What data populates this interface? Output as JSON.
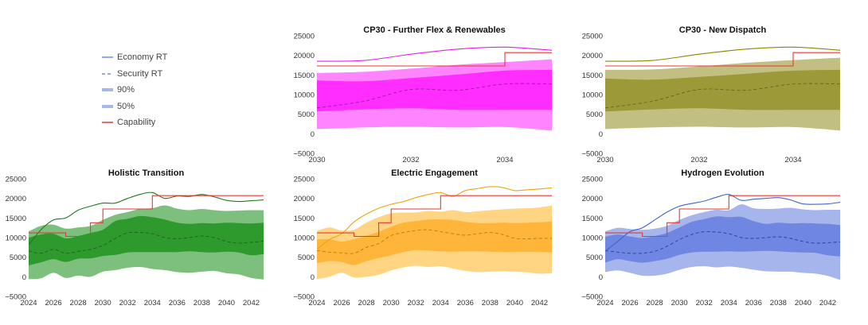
{
  "legend": {
    "items": [
      {
        "label": "Economy RT",
        "style": "solid",
        "weight": 1.5,
        "color": "#6f8fd9"
      },
      {
        "label": "Security RT",
        "style": "dashed",
        "weight": 1.5,
        "color": "#6f8fd9"
      },
      {
        "label": "90%",
        "style": "band",
        "weight": 4,
        "color": "#a6b7ea"
      },
      {
        "label": "50%",
        "style": "band",
        "weight": 4,
        "color": "#a6b7ea"
      },
      {
        "label": "Capability",
        "style": "solid",
        "weight": 1.5,
        "color": "#e53935"
      }
    ]
  },
  "chart_data": [
    {
      "title": "CP30 - Further Flex & Renewables",
      "type": "area",
      "xlim": [
        2030,
        2035
      ],
      "ylim": [
        -5000,
        25000
      ],
      "xticks": [
        2030,
        2032,
        2034
      ],
      "yticks": [
        -5000,
        0,
        5000,
        10000,
        15000,
        20000,
        25000
      ],
      "colors": {
        "outer": "#ff85ff",
        "inner": "#ff2dff",
        "economy": "#e61ee6",
        "median": "#9a1a9a",
        "capability": "#e53935"
      },
      "x": [
        2030,
        2031,
        2032,
        2033,
        2034,
        2035
      ],
      "series": [
        {
          "name": "Economy RT",
          "values": [
            18500,
            18700,
            20300,
            21600,
            22100,
            21300
          ]
        },
        {
          "name": "Security RT",
          "values": [
            6600,
            8300,
            11300,
            11100,
            12700,
            12700
          ]
        },
        {
          "name": "90% lower",
          "values": [
            1200,
            1600,
            1800,
            1600,
            1700,
            800
          ]
        },
        {
          "name": "90% upper",
          "values": [
            15500,
            15800,
            16600,
            17600,
            18300,
            19000
          ]
        },
        {
          "name": "50% lower",
          "values": [
            5700,
            6200,
            6500,
            6100,
            6100,
            6100
          ]
        },
        {
          "name": "50% upper",
          "values": [
            13600,
            13400,
            14200,
            15100,
            16100,
            16300
          ]
        }
      ],
      "capability": {
        "x": [
          2030,
          2034,
          2034,
          2035
        ],
        "y": [
          17300,
          17300,
          20700,
          20700
        ]
      }
    },
    {
      "title": "CP30 - New Dispatch",
      "type": "area",
      "xlim": [
        2030,
        2035
      ],
      "ylim": [
        -5000,
        25000
      ],
      "xticks": [
        2030,
        2032,
        2034
      ],
      "yticks": [
        -5000,
        0,
        5000,
        10000,
        15000,
        20000,
        25000
      ],
      "colors": {
        "outer": "#c2bf82",
        "inner": "#9c9a38",
        "economy": "#8a8600",
        "median": "#666418",
        "capability": "#e53935"
      },
      "x": [
        2030,
        2031,
        2032,
        2033,
        2034,
        2035
      ],
      "series": [
        {
          "name": "Economy RT",
          "values": [
            18500,
            18700,
            20300,
            21600,
            22100,
            21300
          ]
        },
        {
          "name": "Security RT",
          "values": [
            6600,
            8300,
            11300,
            11100,
            12700,
            12700
          ]
        },
        {
          "name": "90% lower",
          "values": [
            1200,
            1600,
            1800,
            1600,
            1700,
            800
          ]
        },
        {
          "name": "90% upper",
          "values": [
            16300,
            16400,
            17200,
            18100,
            18800,
            19400
          ]
        },
        {
          "name": "50% lower",
          "values": [
            5700,
            6200,
            6500,
            6100,
            6100,
            6100
          ]
        },
        {
          "name": "50% upper",
          "values": [
            14100,
            13800,
            14500,
            15300,
            16100,
            16300
          ]
        }
      ],
      "capability": {
        "x": [
          2030,
          2034,
          2034,
          2035
        ],
        "y": [
          17300,
          17300,
          20700,
          20700
        ]
      }
    },
    {
      "title": "Holistic Transition",
      "type": "area",
      "xlim": [
        2024,
        2043
      ],
      "ylim": [
        -5000,
        25000
      ],
      "xticks": [
        2024,
        2026,
        2028,
        2030,
        2032,
        2034,
        2036,
        2038,
        2040,
        2042
      ],
      "yticks": [
        -5000,
        0,
        5000,
        10000,
        15000,
        20000,
        25000
      ],
      "colors": {
        "outer": "#7dc07d",
        "inner": "#2e9a2e",
        "economy": "#1f7a1f",
        "median": "#1d5e1d",
        "capability": "#e53935"
      },
      "x": [
        2024,
        2025,
        2026,
        2027,
        2028,
        2029,
        2030,
        2031,
        2032,
        2033,
        2034,
        2035,
        2036,
        2037,
        2038,
        2039,
        2040,
        2041,
        2042,
        2043
      ],
      "series": [
        {
          "name": "Economy RT",
          "values": [
            8200,
            12000,
            14500,
            15000,
            17000,
            18000,
            18800,
            18800,
            20000,
            21000,
            21500,
            20000,
            20600,
            20500,
            21000,
            20400,
            19500,
            19200,
            19400,
            19600
          ]
        },
        {
          "name": "Security RT",
          "values": [
            6600,
            6000,
            7000,
            6000,
            6500,
            7000,
            8000,
            9800,
            11200,
            11300,
            11000,
            10000,
            9700,
            10000,
            10400,
            10000,
            9000,
            8600,
            8800,
            9100
          ]
        },
        {
          "name": "90% lower",
          "values": [
            -600,
            -400,
            1000,
            -300,
            300,
            0,
            1300,
            1700,
            2300,
            2500,
            2000,
            1700,
            1200,
            1000,
            1300,
            1500,
            900,
            600,
            -300,
            -700
          ]
        },
        {
          "name": "90% upper",
          "values": [
            11600,
            13000,
            13300,
            12300,
            12600,
            13000,
            14500,
            15800,
            16500,
            17300,
            17500,
            18200,
            17400,
            17000,
            17300,
            17000,
            16800,
            16900,
            17000,
            17000
          ]
        },
        {
          "name": "50% lower",
          "values": [
            2900,
            3700,
            4500,
            3800,
            4600,
            4700,
            5300,
            5600,
            6200,
            6300,
            6300,
            6300,
            6300,
            6500,
            6300,
            6200,
            6400,
            6200,
            5500,
            5800
          ]
        },
        {
          "name": "50% upper",
          "values": [
            10000,
            10800,
            11000,
            9800,
            10400,
            11200,
            12000,
            14200,
            14800,
            15500,
            15200,
            14600,
            13800,
            13500,
            13700,
            13600,
            13800,
            13700,
            13600,
            13800
          ]
        }
      ],
      "capability": {
        "x": [
          2024,
          2027,
          2027,
          2029,
          2029,
          2030,
          2030,
          2034,
          2034,
          2043
        ],
        "y": [
          11200,
          11200,
          10300,
          10300,
          13800,
          13800,
          17300,
          17300,
          20700,
          20700
        ]
      }
    },
    {
      "title": "Electric Engagement",
      "type": "area",
      "xlim": [
        2024,
        2043
      ],
      "ylim": [
        -5000,
        25000
      ],
      "xticks": [
        2024,
        2026,
        2028,
        2030,
        2032,
        2034,
        2036,
        2038,
        2040,
        2042
      ],
      "yticks": [
        -5000,
        0,
        5000,
        10000,
        15000,
        20000,
        25000
      ],
      "colors": {
        "outer": "#ffd584",
        "inner": "#ffb43a",
        "economy": "#f4a20f",
        "median": "#b77a10",
        "capability": "#e53935"
      },
      "x": [
        2024,
        2025,
        2026,
        2027,
        2028,
        2029,
        2030,
        2031,
        2032,
        2033,
        2034,
        2035,
        2036,
        2037,
        2038,
        2039,
        2040,
        2041,
        2042,
        2043
      ],
      "series": [
        {
          "name": "Economy RT",
          "values": [
            7000,
            9500,
            11000,
            14000,
            16000,
            17500,
            18500,
            19200,
            20200,
            21000,
            21500,
            20500,
            22000,
            22500,
            23000,
            22800,
            22000,
            22200,
            22400,
            22700
          ]
        },
        {
          "name": "Security RT",
          "values": [
            6700,
            6300,
            6100,
            6000,
            7500,
            8500,
            10500,
            11300,
            11800,
            12000,
            11500,
            11000,
            10600,
            11000,
            11300,
            10800,
            9800,
            9700,
            9800,
            9800
          ]
        },
        {
          "name": "90% lower",
          "values": [
            -600,
            0,
            1000,
            -200,
            0,
            500,
            1600,
            2400,
            2800,
            2500,
            2700,
            2100,
            1500,
            1200,
            1300,
            1400,
            1300,
            1100,
            800,
            900
          ]
        },
        {
          "name": "90% upper",
          "values": [
            11700,
            12600,
            11800,
            12000,
            13800,
            15200,
            16200,
            16400,
            16400,
            16800,
            16600,
            17000,
            16500,
            16700,
            17000,
            17200,
            17400,
            17500,
            17700,
            18200
          ]
        },
        {
          "name": "50% lower",
          "values": [
            3500,
            4000,
            3800,
            3000,
            4000,
            4800,
            5500,
            6300,
            6800,
            6700,
            6500,
            6400,
            6500,
            6500,
            6400,
            6300,
            6300,
            6400,
            6300,
            6200
          ]
        },
        {
          "name": "50% upper",
          "values": [
            9500,
            9600,
            9000,
            9600,
            10500,
            11500,
            12800,
            13800,
            14200,
            14600,
            14600,
            14500,
            14000,
            13700,
            13700,
            13800,
            13700,
            13800,
            13900,
            14100
          ]
        }
      ],
      "capability": {
        "x": [
          2024,
          2027,
          2027,
          2029,
          2029,
          2030,
          2030,
          2034,
          2034,
          2043
        ],
        "y": [
          11200,
          11200,
          10300,
          10300,
          13800,
          13800,
          17300,
          17300,
          20700,
          20700
        ]
      }
    },
    {
      "title": "Hydrogen Evolution",
      "type": "area",
      "xlim": [
        2024,
        2043
      ],
      "ylim": [
        -5000,
        25000
      ],
      "xticks": [
        2024,
        2026,
        2028,
        2030,
        2032,
        2034,
        2036,
        2038,
        2040,
        2042
      ],
      "yticks": [
        -5000,
        0,
        5000,
        10000,
        15000,
        20000,
        25000
      ],
      "colors": {
        "outer": "#a6b5ec",
        "inner": "#6f86e2",
        "economy": "#3f63cc",
        "median": "#2d3f8a",
        "capability": "#e53935"
      },
      "x": [
        2024,
        2025,
        2026,
        2027,
        2028,
        2029,
        2030,
        2031,
        2032,
        2033,
        2034,
        2035,
        2036,
        2037,
        2038,
        2039,
        2040,
        2041,
        2042,
        2043
      ],
      "series": [
        {
          "name": "Economy RT",
          "values": [
            6500,
            9000,
            11500,
            12500,
            14500,
            16500,
            18000,
            18700,
            19300,
            20300,
            21000,
            19500,
            19800,
            20000,
            20200,
            19600,
            18600,
            18500,
            18600,
            19000
          ]
        },
        {
          "name": "Security RT",
          "values": [
            6700,
            6300,
            6000,
            6000,
            6500,
            7800,
            9500,
            10800,
            11500,
            11400,
            11000,
            10000,
            9800,
            10000,
            10200,
            9800,
            9000,
            8600,
            8700,
            8900
          ]
        },
        {
          "name": "90% lower",
          "values": [
            1200,
            1600,
            1000,
            300,
            300,
            800,
            1800,
            2500,
            2700,
            2400,
            2600,
            2300,
            1800,
            1400,
            1300,
            1300,
            1000,
            800,
            200,
            -800
          ]
        },
        {
          "name": "90% upper",
          "values": [
            11600,
            12500,
            12200,
            12000,
            12300,
            13000,
            14500,
            15700,
            16500,
            17100,
            17000,
            18500,
            17500,
            17300,
            17400,
            17600,
            17200,
            17000,
            17100,
            17100
          ]
        },
        {
          "name": "50% lower",
          "values": [
            3600,
            4500,
            4000,
            3600,
            4000,
            4600,
            5600,
            6200,
            6400,
            6400,
            6500,
            6400,
            6500,
            6600,
            6500,
            6300,
            6200,
            6100,
            5500,
            5200
          ]
        },
        {
          "name": "50% upper",
          "values": [
            10200,
            10800,
            10300,
            9900,
            10400,
            11200,
            12600,
            14000,
            14700,
            15400,
            15200,
            15300,
            14200,
            13500,
            13800,
            13600,
            13700,
            13600,
            13500,
            13200
          ]
        }
      ],
      "capability": {
        "x": [
          2024,
          2027,
          2027,
          2029,
          2029,
          2030,
          2030,
          2034,
          2034,
          2043
        ],
        "y": [
          11200,
          11200,
          10300,
          10300,
          13800,
          13800,
          17300,
          17300,
          20700,
          20700
        ]
      }
    }
  ]
}
